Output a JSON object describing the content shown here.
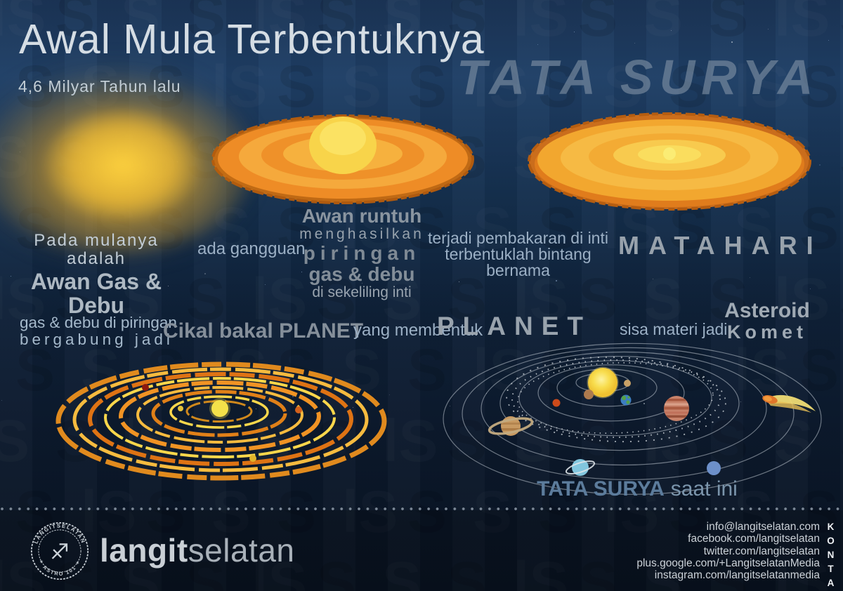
{
  "header": {
    "title": "Awal Mula Terbentuknya",
    "subtitle": "4,6 Milyar Tahun lalu",
    "big_title": "TATA SURYA"
  },
  "steps": {
    "step1_line1": "Pada mulanya adalah",
    "step1_line2": "Awan Gas & Debu",
    "step2": "ada gangguan",
    "step3_line1": "Awan runtuh",
    "step3_line2": "menghasilkan",
    "step3_line3": "piringan",
    "step3_line4": "gas & debu",
    "step3_line5": "di sekeliling inti",
    "step4_line1": "terjadi pembakaran di inti",
    "step4_line2": "terbentuklah bintang bernama",
    "step5": "MATAHARI",
    "step6_line1": "gas & debu di piringan",
    "step6_line2": "bergabung jadi",
    "step7": "Cikal bakal PLANET",
    "step8": "yang membentuk",
    "step9": "PLANET",
    "step10": "sisa materi jadi",
    "step11_line1": "Asteroid",
    "step11_line2": "Komet",
    "caption_bold": "TATA SURYA",
    "caption_light": "saat ini"
  },
  "footer": {
    "brand_bold": "langit",
    "brand_light": "selatan",
    "stamp_top": "LANGITSELATAN",
    "stamp_bottom": "✶ ASTRO 101 ✶",
    "stamp_glyph": "♐",
    "kontak": "KONTAK",
    "contacts": [
      "info@langitselatan.com",
      "facebook.com/langitselatan",
      "twitter.com/langitselatan",
      "plus.google.com/+LangitselatanMedia",
      "instagram.com/langitselatanmedia"
    ]
  },
  "icons": {
    "stamp": "sagittarius-archer-stamp",
    "watermark": "langitselatan-ls-monogram-pattern"
  },
  "colors": {
    "background_top": "#1d3a5e",
    "background_bottom": "#0a1424",
    "disk_orange": "#ee8c26",
    "disk_yellow": "#f8d44a",
    "big_title_gray": "#8092a5",
    "text_light_blue": "#9cb0c5",
    "text_gray": "#98a2ac",
    "sun_yellow": "#f4e14a",
    "kontak_white": "#f0f3f6"
  }
}
